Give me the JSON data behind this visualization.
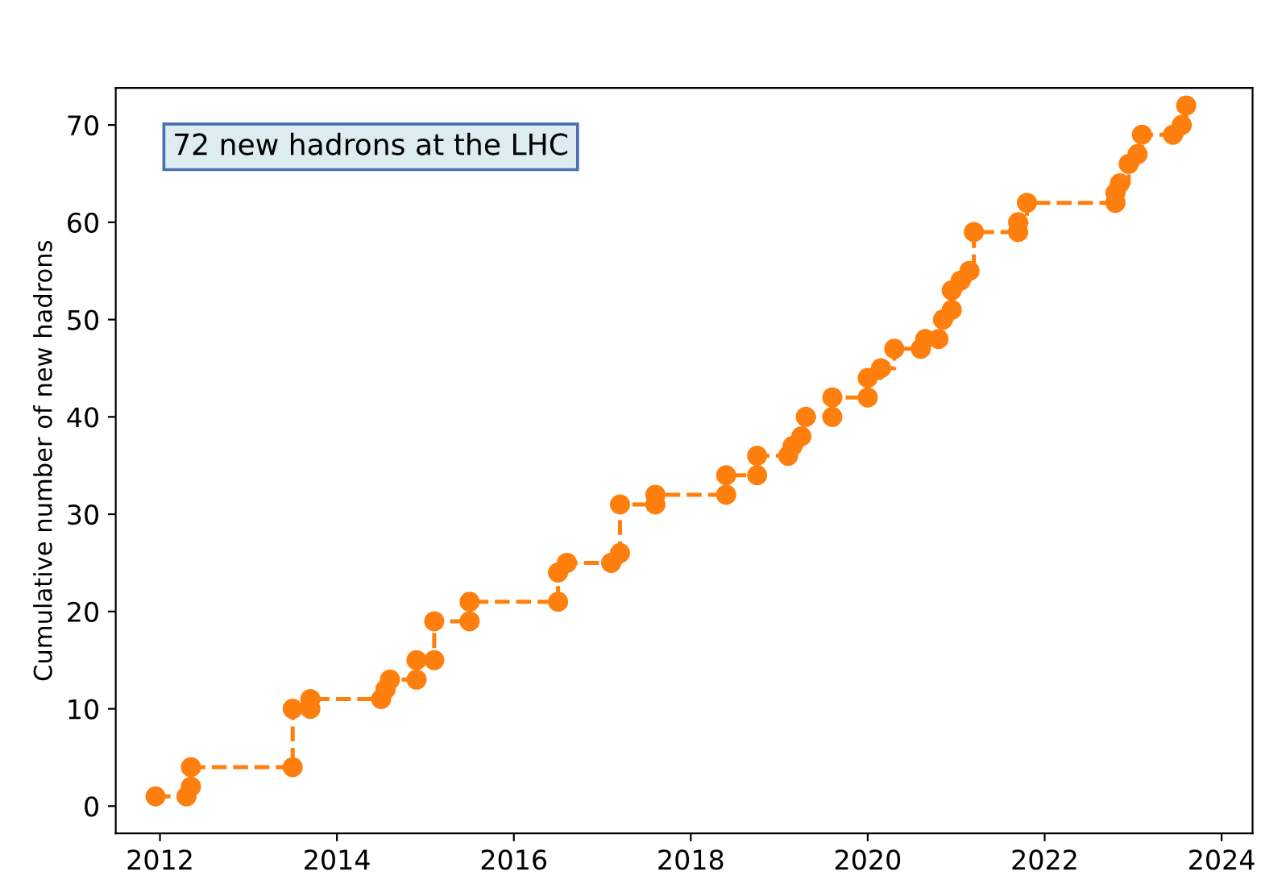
{
  "chart_data": {
    "type": "step",
    "ylabel": "Cumulative number of new hadrons",
    "annotations": [
      "72 new hadrons at the LHC"
    ],
    "series": [
      {
        "color": "#ff7f0e",
        "x": [
          2011.95,
          2012.3,
          2012.35,
          2012.35,
          2013.5,
          2013.5,
          2013.7,
          2013.7,
          2014.5,
          2014.55,
          2014.6,
          2014.9,
          2014.9,
          2015.1,
          2015.1,
          2015.5,
          2015.5,
          2016.5,
          2016.5,
          2016.6,
          2017.1,
          2017.2,
          2017.2,
          2017.6,
          2017.6,
          2018.4,
          2018.4,
          2018.75,
          2018.75,
          2019.1,
          2019.15,
          2019.25,
          2019.3,
          2019.6,
          2019.6,
          2020.0,
          2020.0,
          2020.15,
          2020.3,
          2020.6,
          2020.65,
          2020.8,
          2020.85,
          2020.95,
          2020.95,
          2021.05,
          2021.15,
          2021.2,
          2021.7,
          2021.7,
          2021.8,
          2022.8,
          2022.8,
          2022.85,
          2022.95,
          2023.05,
          2023.1,
          2023.45,
          2023.55,
          2023.6
        ],
        "values": [
          1,
          1,
          2,
          4,
          4,
          10,
          10,
          11,
          11,
          12,
          13,
          13,
          15,
          15,
          19,
          19,
          21,
          21,
          24,
          25,
          25,
          26,
          31,
          31,
          32,
          32,
          34,
          34,
          36,
          36,
          37,
          38,
          40,
          40,
          42,
          42,
          44,
          45,
          47,
          47,
          48,
          48,
          50,
          51,
          53,
          54,
          55,
          59,
          59,
          60,
          62,
          62,
          63,
          64,
          66,
          67,
          69,
          69,
          70,
          72
        ]
      }
    ],
    "xlim": [
      2011.5,
      2024.35
    ],
    "xticks": [
      2012,
      2014,
      2016,
      2018,
      2020,
      2022,
      2024
    ],
    "ylim": [
      -2.8,
      73.8
    ],
    "yticks": [
      0,
      10,
      20,
      30,
      40,
      50,
      60,
      70
    ],
    "grid": false,
    "marker": "circle",
    "line_style": "dashed"
  }
}
